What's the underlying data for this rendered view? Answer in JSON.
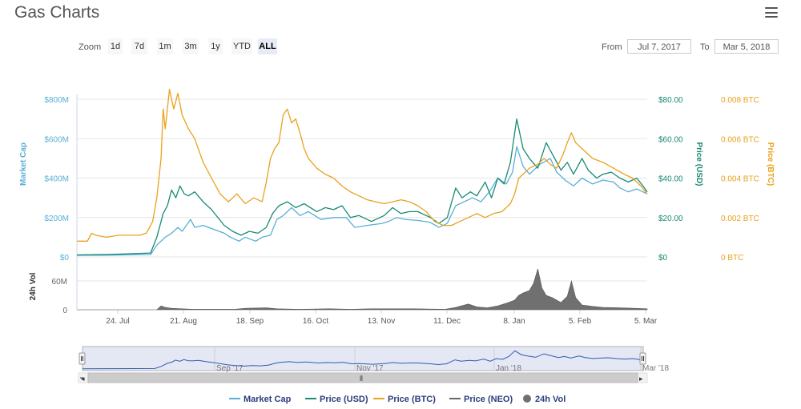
{
  "title": "Gas Charts",
  "toolbar": {
    "zoom_label": "Zoom",
    "zoom_buttons": [
      "1d",
      "7d",
      "1m",
      "3m",
      "1y",
      "YTD",
      "ALL"
    ],
    "active_zoom": "ALL",
    "from_label": "From",
    "from_value": "Jul 7, 2017",
    "to_label": "To",
    "to_value": "Mar 5, 2018"
  },
  "colors": {
    "market_cap": "#5aafd6",
    "price_usd": "#1a8a74",
    "price_btc": "#eaa11c",
    "price_neo": "#666666",
    "volume": "#707070"
  },
  "chart_data": {
    "type": "line",
    "x_range": [
      "2017-07-07",
      "2018-03-05"
    ],
    "x_ticks": [
      "24. Jul",
      "21. Aug",
      "18. Sep",
      "16. Oct",
      "13. Nov",
      "11. Dec",
      "8. Jan",
      "5. Feb",
      "5. Mar"
    ],
    "axes": {
      "market_cap": {
        "label": "Market Cap",
        "ticks": [
          "$0",
          "$200M",
          "$400M",
          "$600M",
          "$800M"
        ],
        "range": [
          0,
          800
        ]
      },
      "price_usd": {
        "label": "Price (USD)",
        "ticks": [
          "$0",
          "$20.00",
          "$40.00",
          "$60.00",
          "$80.00"
        ],
        "range": [
          0,
          80
        ]
      },
      "price_btc": {
        "label": "Price (BTC)",
        "ticks": [
          "0 BTC",
          "0.002 BTC",
          "0.004 BTC",
          "0.006 BTC",
          "0.008 BTC"
        ],
        "range": [
          0,
          0.008
        ]
      },
      "volume": {
        "label": "24h Vol",
        "ticks": [
          "0",
          "60M"
        ],
        "range": [
          0,
          90
        ]
      }
    },
    "series": [
      {
        "name": "Market Cap",
        "axis": "market_cap",
        "points": [
          [
            0,
            8
          ],
          [
            14,
            9
          ],
          [
            35,
            12
          ],
          [
            38,
            60
          ],
          [
            42,
            100
          ],
          [
            45,
            120
          ],
          [
            48,
            150
          ],
          [
            50,
            130
          ],
          [
            54,
            190
          ],
          [
            56,
            150
          ],
          [
            60,
            160
          ],
          [
            65,
            140
          ],
          [
            70,
            120
          ],
          [
            73,
            100
          ],
          [
            77,
            80
          ],
          [
            80,
            100
          ],
          [
            85,
            80
          ],
          [
            88,
            100
          ],
          [
            92,
            110
          ],
          [
            95,
            190
          ],
          [
            98,
            210
          ],
          [
            102,
            250
          ],
          [
            106,
            210
          ],
          [
            110,
            230
          ],
          [
            116,
            190
          ],
          [
            122,
            200
          ],
          [
            128,
            200
          ],
          [
            132,
            150
          ],
          [
            138,
            160
          ],
          [
            145,
            170
          ],
          [
            148,
            180
          ],
          [
            152,
            200
          ],
          [
            156,
            190
          ],
          [
            162,
            185
          ],
          [
            168,
            175
          ],
          [
            172,
            150
          ],
          [
            176,
            170
          ],
          [
            180,
            260
          ],
          [
            184,
            280
          ],
          [
            188,
            300
          ],
          [
            192,
            280
          ],
          [
            196,
            330
          ],
          [
            200,
            400
          ],
          [
            204,
            370
          ],
          [
            207,
            430
          ],
          [
            209,
            560
          ],
          [
            212,
            460
          ],
          [
            215,
            420
          ],
          [
            220,
            470
          ],
          [
            225,
            500
          ],
          [
            228,
            430
          ],
          [
            232,
            390
          ],
          [
            236,
            360
          ],
          [
            240,
            400
          ],
          [
            245,
            370
          ],
          [
            250,
            390
          ],
          [
            255,
            380
          ],
          [
            258,
            350
          ],
          [
            262,
            330
          ],
          [
            266,
            345
          ],
          [
            271,
            320
          ]
        ]
      },
      {
        "name": "Price (USD)",
        "axis": "price_usd",
        "points": [
          [
            0,
            1
          ],
          [
            14,
            1.2
          ],
          [
            35,
            2
          ],
          [
            38,
            10
          ],
          [
            41,
            22
          ],
          [
            43,
            26
          ],
          [
            45,
            34
          ],
          [
            47,
            30
          ],
          [
            49,
            36
          ],
          [
            51,
            32
          ],
          [
            53,
            31
          ],
          [
            56,
            33
          ],
          [
            60,
            28
          ],
          [
            64,
            24
          ],
          [
            70,
            16
          ],
          [
            74,
            13
          ],
          [
            78,
            11
          ],
          [
            82,
            13
          ],
          [
            86,
            12
          ],
          [
            90,
            15
          ],
          [
            93,
            22
          ],
          [
            96,
            26
          ],
          [
            100,
            28
          ],
          [
            104,
            25
          ],
          [
            108,
            27
          ],
          [
            114,
            23
          ],
          [
            118,
            25
          ],
          [
            122,
            24
          ],
          [
            126,
            26
          ],
          [
            130,
            20
          ],
          [
            134,
            21
          ],
          [
            140,
            18
          ],
          [
            146,
            21
          ],
          [
            150,
            25
          ],
          [
            154,
            22
          ],
          [
            158,
            23
          ],
          [
            162,
            23
          ],
          [
            168,
            20
          ],
          [
            172,
            17
          ],
          [
            176,
            20
          ],
          [
            180,
            35
          ],
          [
            183,
            30
          ],
          [
            187,
            33
          ],
          [
            190,
            31
          ],
          [
            194,
            38
          ],
          [
            197,
            30
          ],
          [
            200,
            40
          ],
          [
            203,
            37
          ],
          [
            206,
            48
          ],
          [
            209,
            70
          ],
          [
            212,
            55
          ],
          [
            215,
            50
          ],
          [
            219,
            45
          ],
          [
            223,
            58
          ],
          [
            226,
            52
          ],
          [
            230,
            44
          ],
          [
            233,
            48
          ],
          [
            236,
            42
          ],
          [
            240,
            50
          ],
          [
            243,
            44
          ],
          [
            247,
            40
          ],
          [
            250,
            42
          ],
          [
            254,
            43
          ],
          [
            258,
            40
          ],
          [
            262,
            38
          ],
          [
            266,
            40
          ],
          [
            269,
            36
          ],
          [
            271,
            33
          ]
        ]
      },
      {
        "name": "Price (BTC)",
        "axis": "price_btc",
        "points": [
          [
            0,
            0.0008
          ],
          [
            5,
            0.0008
          ],
          [
            7,
            0.0012
          ],
          [
            9,
            0.0011
          ],
          [
            14,
            0.001
          ],
          [
            20,
            0.0011
          ],
          [
            30,
            0.0011
          ],
          [
            33,
            0.0012
          ],
          [
            36,
            0.0018
          ],
          [
            38,
            0.003
          ],
          [
            40,
            0.005
          ],
          [
            41,
            0.0075
          ],
          [
            42,
            0.0065
          ],
          [
            44,
            0.0085
          ],
          [
            46,
            0.0075
          ],
          [
            48,
            0.0083
          ],
          [
            50,
            0.0072
          ],
          [
            53,
            0.0065
          ],
          [
            56,
            0.006
          ],
          [
            60,
            0.0048
          ],
          [
            64,
            0.004
          ],
          [
            68,
            0.0032
          ],
          [
            72,
            0.0028
          ],
          [
            76,
            0.0032
          ],
          [
            80,
            0.0027
          ],
          [
            84,
            0.003
          ],
          [
            88,
            0.0028
          ],
          [
            90,
            0.0038
          ],
          [
            92,
            0.005
          ],
          [
            94,
            0.0055
          ],
          [
            96,
            0.0058
          ],
          [
            98,
            0.0072
          ],
          [
            100,
            0.0075
          ],
          [
            102,
            0.0068
          ],
          [
            104,
            0.007
          ],
          [
            106,
            0.0063
          ],
          [
            108,
            0.0055
          ],
          [
            110,
            0.005
          ],
          [
            114,
            0.0045
          ],
          [
            118,
            0.0042
          ],
          [
            122,
            0.004
          ],
          [
            126,
            0.0036
          ],
          [
            130,
            0.0033
          ],
          [
            134,
            0.0031
          ],
          [
            138,
            0.0029
          ],
          [
            142,
            0.0028
          ],
          [
            146,
            0.0027
          ],
          [
            150,
            0.0028
          ],
          [
            154,
            0.0029
          ],
          [
            158,
            0.0028
          ],
          [
            162,
            0.0026
          ],
          [
            166,
            0.0023
          ],
          [
            170,
            0.0018
          ],
          [
            174,
            0.0016
          ],
          [
            178,
            0.0016
          ],
          [
            182,
            0.0018
          ],
          [
            186,
            0.002
          ],
          [
            190,
            0.0022
          ],
          [
            194,
            0.002
          ],
          [
            198,
            0.0022
          ],
          [
            202,
            0.0023
          ],
          [
            206,
            0.0027
          ],
          [
            208,
            0.0032
          ],
          [
            210,
            0.004
          ],
          [
            212,
            0.0042
          ],
          [
            215,
            0.0045
          ],
          [
            219,
            0.0047
          ],
          [
            222,
            0.005
          ],
          [
            225,
            0.0047
          ],
          [
            228,
            0.0045
          ],
          [
            231,
            0.0052
          ],
          [
            233,
            0.0058
          ],
          [
            235,
            0.0063
          ],
          [
            237,
            0.0058
          ],
          [
            240,
            0.0055
          ],
          [
            245,
            0.005
          ],
          [
            250,
            0.0048
          ],
          [
            255,
            0.0045
          ],
          [
            260,
            0.0042
          ],
          [
            264,
            0.004
          ],
          [
            268,
            0.0036
          ],
          [
            271,
            0.0032
          ]
        ]
      },
      {
        "name": "Price (NEO)",
        "axis": "price_usd",
        "points": []
      },
      {
        "name": "24h Vol",
        "axis": "volume",
        "type": "area",
        "points": [
          [
            0,
            0
          ],
          [
            38,
            0
          ],
          [
            40,
            8
          ],
          [
            42,
            5
          ],
          [
            45,
            3
          ],
          [
            50,
            2
          ],
          [
            55,
            1
          ],
          [
            75,
            1
          ],
          [
            80,
            3
          ],
          [
            90,
            4
          ],
          [
            95,
            2
          ],
          [
            105,
            1
          ],
          [
            120,
            2
          ],
          [
            130,
            1
          ],
          [
            140,
            2
          ],
          [
            160,
            2
          ],
          [
            175,
            1
          ],
          [
            180,
            5
          ],
          [
            186,
            12
          ],
          [
            190,
            6
          ],
          [
            195,
            4
          ],
          [
            200,
            8
          ],
          [
            205,
            15
          ],
          [
            208,
            20
          ],
          [
            210,
            30
          ],
          [
            212,
            35
          ],
          [
            215,
            40
          ],
          [
            217,
            55
          ],
          [
            219,
            85
          ],
          [
            221,
            45
          ],
          [
            223,
            30
          ],
          [
            226,
            25
          ],
          [
            230,
            15
          ],
          [
            233,
            28
          ],
          [
            235,
            60
          ],
          [
            237,
            25
          ],
          [
            240,
            10
          ],
          [
            245,
            7
          ],
          [
            250,
            5
          ],
          [
            258,
            4
          ],
          [
            265,
            3
          ],
          [
            271,
            2
          ]
        ]
      }
    ],
    "navigator_ticks": [
      "Sep '17",
      "Nov '17",
      "Jan '18",
      "Mar '18"
    ],
    "legend": {
      "position": "bottom",
      "items": [
        "Market Cap",
        "Price (USD)",
        "Price (BTC)",
        "Price (NEO)",
        "24h Vol"
      ]
    }
  }
}
